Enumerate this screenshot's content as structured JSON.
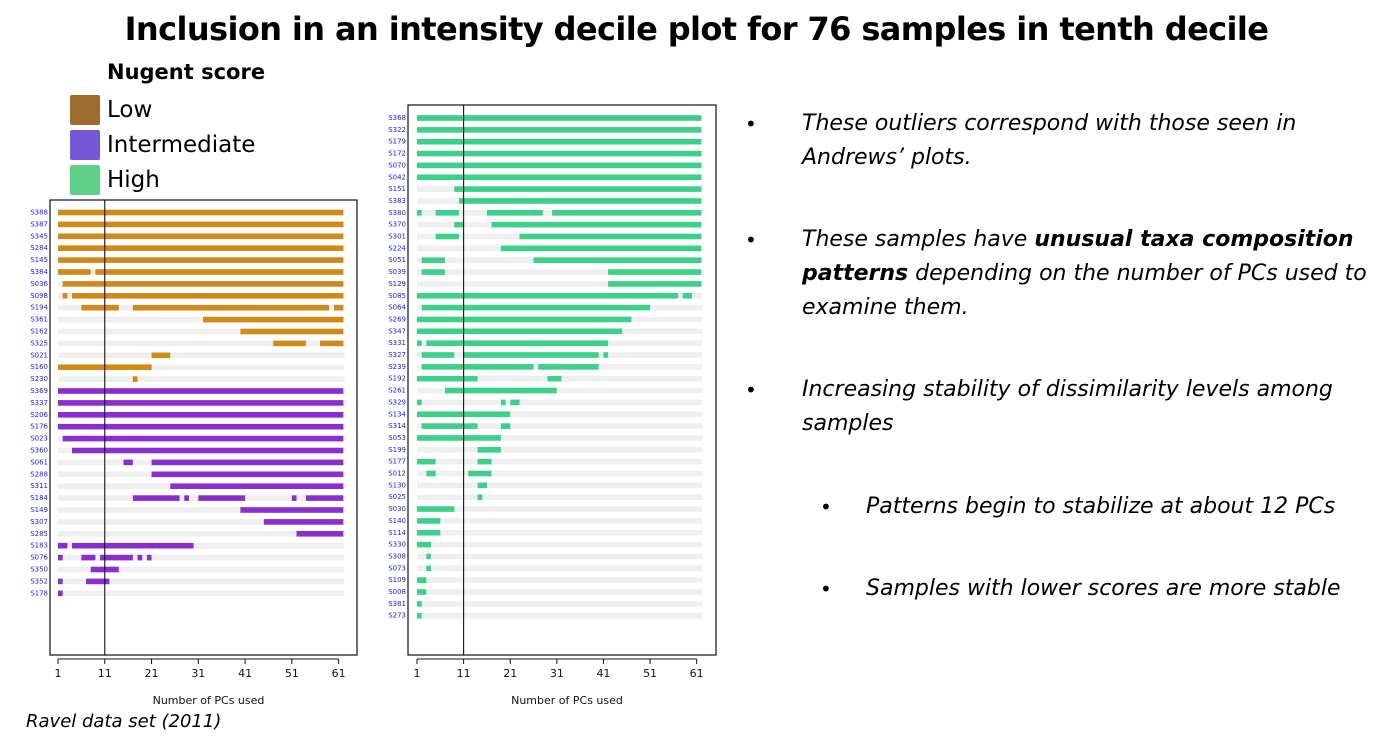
{
  "title": "Inclusion in an intensity decile plot for 76 samples in tenth decile",
  "legend": {
    "title": "Nugent score",
    "items": [
      {
        "label": "Low",
        "color": "#9b6c2e"
      },
      {
        "label": "Intermediate",
        "color": "#7458d6"
      },
      {
        "label": "High",
        "color": "#5fd089"
      }
    ]
  },
  "chart_data": [
    {
      "type": "bar",
      "xlabel": "Number of PCs used",
      "x_ticks": [
        1,
        11,
        21,
        31,
        41,
        51,
        61
      ],
      "xlim": [
        0,
        62
      ],
      "vline_x": 10,
      "track_color": "#efefef",
      "label_color": "#1a1ae6",
      "rows": [
        {
          "label": "S388",
          "color": "#cf8a1a",
          "segments": [
            [
              0,
              61
            ]
          ]
        },
        {
          "label": "S387",
          "color": "#cf8a1a",
          "segments": [
            [
              0,
              61
            ]
          ]
        },
        {
          "label": "S345",
          "color": "#cf8a1a",
          "segments": [
            [
              0,
              61
            ]
          ]
        },
        {
          "label": "S284",
          "color": "#cf8a1a",
          "segments": [
            [
              0,
              61
            ]
          ]
        },
        {
          "label": "S145",
          "color": "#cf8a1a",
          "segments": [
            [
              0,
              61
            ]
          ]
        },
        {
          "label": "S384",
          "color": "#cf8a1a",
          "segments": [
            [
              0,
              7
            ],
            [
              8,
              61
            ]
          ]
        },
        {
          "label": "S036",
          "color": "#cf8a1a",
          "segments": [
            [
              1,
              61
            ]
          ]
        },
        {
          "label": "S098",
          "color": "#cf8a1a",
          "segments": [
            [
              1,
              2
            ],
            [
              3,
              61
            ]
          ]
        },
        {
          "label": "S194",
          "color": "#cf8a1a",
          "segments": [
            [
              5,
              13
            ],
            [
              16,
              58
            ],
            [
              59,
              61
            ]
          ]
        },
        {
          "label": "S361",
          "color": "#cf8a1a",
          "segments": [
            [
              31,
              61
            ]
          ]
        },
        {
          "label": "S162",
          "color": "#cf8a1a",
          "segments": [
            [
              39,
              61
            ]
          ]
        },
        {
          "label": "S325",
          "color": "#cf8a1a",
          "segments": [
            [
              46,
              53
            ],
            [
              56,
              61
            ]
          ]
        },
        {
          "label": "S021",
          "color": "#cf8a1a",
          "segments": [
            [
              20,
              24
            ]
          ]
        },
        {
          "label": "S160",
          "color": "#cf8a1a",
          "segments": [
            [
              0,
              20
            ]
          ]
        },
        {
          "label": "S230",
          "color": "#cf8a1a",
          "segments": [
            [
              16,
              17
            ]
          ]
        },
        {
          "label": "S369",
          "color": "#8a2ed0",
          "segments": [
            [
              0,
              61
            ]
          ]
        },
        {
          "label": "S337",
          "color": "#8a2ed0",
          "segments": [
            [
              0,
              61
            ]
          ]
        },
        {
          "label": "S206",
          "color": "#8a2ed0",
          "segments": [
            [
              0,
              61
            ]
          ]
        },
        {
          "label": "S176",
          "color": "#8a2ed0",
          "segments": [
            [
              0,
              61
            ]
          ]
        },
        {
          "label": "S023",
          "color": "#8a2ed0",
          "segments": [
            [
              1,
              61
            ]
          ]
        },
        {
          "label": "S360",
          "color": "#8a2ed0",
          "segments": [
            [
              3,
              61
            ]
          ]
        },
        {
          "label": "S061",
          "color": "#8a2ed0",
          "segments": [
            [
              14,
              16
            ],
            [
              20,
              61
            ]
          ]
        },
        {
          "label": "S288",
          "color": "#8a2ed0",
          "segments": [
            [
              20,
              61
            ]
          ]
        },
        {
          "label": "S311",
          "color": "#8a2ed0",
          "segments": [
            [
              24,
              61
            ]
          ]
        },
        {
          "label": "S184",
          "color": "#8a2ed0",
          "segments": [
            [
              16,
              26
            ],
            [
              27,
              28
            ],
            [
              30,
              40
            ],
            [
              50,
              51
            ],
            [
              53,
              61
            ]
          ]
        },
        {
          "label": "S149",
          "color": "#8a2ed0",
          "segments": [
            [
              39,
              61
            ]
          ]
        },
        {
          "label": "S307",
          "color": "#8a2ed0",
          "segments": [
            [
              44,
              61
            ]
          ]
        },
        {
          "label": "S285",
          "color": "#8a2ed0",
          "segments": [
            [
              51,
              61
            ]
          ]
        },
        {
          "label": "S183",
          "color": "#8a2ed0",
          "segments": [
            [
              0,
              2
            ],
            [
              3,
              29
            ]
          ]
        },
        {
          "label": "S076",
          "color": "#8a2ed0",
          "segments": [
            [
              0,
              1
            ],
            [
              5,
              8
            ],
            [
              9,
              16
            ],
            [
              17,
              18
            ],
            [
              19,
              20
            ]
          ]
        },
        {
          "label": "S350",
          "color": "#8a2ed0",
          "segments": [
            [
              7,
              13
            ]
          ]
        },
        {
          "label": "S352",
          "color": "#8a2ed0",
          "segments": [
            [
              0,
              1
            ],
            [
              6,
              11
            ]
          ]
        },
        {
          "label": "S178",
          "color": "#8a2ed0",
          "segments": [
            [
              0,
              1
            ]
          ]
        }
      ]
    },
    {
      "type": "bar",
      "xlabel": "Number of PCs used",
      "x_ticks": [
        1,
        11,
        21,
        31,
        41,
        51,
        61
      ],
      "xlim": [
        0,
        62
      ],
      "vline_x": 10,
      "track_color": "#efefef",
      "label_color": "#1a1ae6",
      "rows": [
        {
          "label": "S368",
          "color": "#3dd08a",
          "segments": [
            [
              0,
              61
            ]
          ]
        },
        {
          "label": "S322",
          "color": "#3dd08a",
          "segments": [
            [
              0,
              61
            ]
          ]
        },
        {
          "label": "S179",
          "color": "#3dd08a",
          "segments": [
            [
              0,
              61
            ]
          ]
        },
        {
          "label": "S172",
          "color": "#3dd08a",
          "segments": [
            [
              0,
              61
            ]
          ]
        },
        {
          "label": "S070",
          "color": "#3dd08a",
          "segments": [
            [
              0,
              61
            ]
          ]
        },
        {
          "label": "S042",
          "color": "#3dd08a",
          "segments": [
            [
              0,
              61
            ]
          ]
        },
        {
          "label": "S151",
          "color": "#3dd08a",
          "segments": [
            [
              8,
              61
            ]
          ]
        },
        {
          "label": "S383",
          "color": "#3dd08a",
          "segments": [
            [
              9,
              61
            ]
          ]
        },
        {
          "label": "S380",
          "color": "#3dd08a",
          "segments": [
            [
              0,
              1
            ],
            [
              4,
              9
            ],
            [
              15,
              27
            ],
            [
              29,
              61
            ]
          ]
        },
        {
          "label": "S370",
          "color": "#3dd08a",
          "segments": [
            [
              8,
              10
            ],
            [
              16,
              61
            ]
          ]
        },
        {
          "label": "S301",
          "color": "#3dd08a",
          "segments": [
            [
              4,
              9
            ],
            [
              22,
              61
            ]
          ]
        },
        {
          "label": "S224",
          "color": "#3dd08a",
          "segments": [
            [
              18,
              61
            ]
          ]
        },
        {
          "label": "S051",
          "color": "#3dd08a",
          "segments": [
            [
              1,
              6
            ],
            [
              25,
              61
            ]
          ]
        },
        {
          "label": "S039",
          "color": "#3dd08a",
          "segments": [
            [
              1,
              6
            ],
            [
              41,
              61
            ]
          ]
        },
        {
          "label": "S129",
          "color": "#3dd08a",
          "segments": [
            [
              41,
              61
            ]
          ]
        },
        {
          "label": "S085",
          "color": "#3dd08a",
          "segments": [
            [
              0,
              56
            ],
            [
              57,
              59
            ]
          ]
        },
        {
          "label": "S064",
          "color": "#3dd08a",
          "segments": [
            [
              1,
              50
            ]
          ]
        },
        {
          "label": "S269",
          "color": "#3dd08a",
          "segments": [
            [
              0,
              46
            ]
          ]
        },
        {
          "label": "S347",
          "color": "#3dd08a",
          "segments": [
            [
              0,
              44
            ]
          ]
        },
        {
          "label": "S331",
          "color": "#3dd08a",
          "segments": [
            [
              0,
              1
            ],
            [
              2,
              41
            ]
          ]
        },
        {
          "label": "S327",
          "color": "#3dd08a",
          "segments": [
            [
              1,
              8
            ],
            [
              10,
              39
            ],
            [
              40,
              41
            ]
          ]
        },
        {
          "label": "S239",
          "color": "#3dd08a",
          "segments": [
            [
              1,
              25
            ],
            [
              26,
              39
            ]
          ]
        },
        {
          "label": "S192",
          "color": "#3dd08a",
          "segments": [
            [
              0,
              13
            ],
            [
              28,
              31
            ]
          ]
        },
        {
          "label": "S261",
          "color": "#3dd08a",
          "segments": [
            [
              6,
              30
            ]
          ]
        },
        {
          "label": "S329",
          "color": "#3dd08a",
          "segments": [
            [
              0,
              1
            ],
            [
              18,
              19
            ],
            [
              20,
              22
            ]
          ]
        },
        {
          "label": "S134",
          "color": "#3dd08a",
          "segments": [
            [
              0,
              20
            ]
          ]
        },
        {
          "label": "S314",
          "color": "#3dd08a",
          "segments": [
            [
              1,
              13
            ],
            [
              18,
              20
            ]
          ]
        },
        {
          "label": "S053",
          "color": "#3dd08a",
          "segments": [
            [
              0,
              18
            ]
          ]
        },
        {
          "label": "S199",
          "color": "#3dd08a",
          "segments": [
            [
              13,
              18
            ]
          ]
        },
        {
          "label": "S177",
          "color": "#3dd08a",
          "segments": [
            [
              0,
              4
            ],
            [
              13,
              16
            ]
          ]
        },
        {
          "label": "S012",
          "color": "#3dd08a",
          "segments": [
            [
              2,
              4
            ],
            [
              11,
              16
            ]
          ]
        },
        {
          "label": "S130",
          "color": "#3dd08a",
          "segments": [
            [
              13,
              15
            ]
          ]
        },
        {
          "label": "S025",
          "color": "#3dd08a",
          "segments": [
            [
              13,
              14
            ]
          ]
        },
        {
          "label": "S030",
          "color": "#3dd08a",
          "segments": [
            [
              0,
              8
            ]
          ]
        },
        {
          "label": "S140",
          "color": "#3dd08a",
          "segments": [
            [
              0,
              5
            ]
          ]
        },
        {
          "label": "S114",
          "color": "#3dd08a",
          "segments": [
            [
              0,
              5
            ]
          ]
        },
        {
          "label": "S330",
          "color": "#3dd08a",
          "segments": [
            [
              0,
              3
            ]
          ]
        },
        {
          "label": "S308",
          "color": "#3dd08a",
          "segments": [
            [
              2,
              3
            ]
          ]
        },
        {
          "label": "S073",
          "color": "#3dd08a",
          "segments": [
            [
              2,
              3
            ]
          ]
        },
        {
          "label": "S109",
          "color": "#3dd08a",
          "segments": [
            [
              0,
              2
            ]
          ]
        },
        {
          "label": "S008",
          "color": "#3dd08a",
          "segments": [
            [
              0,
              2
            ]
          ]
        },
        {
          "label": "S381",
          "color": "#3dd08a",
          "segments": [
            [
              0,
              1
            ]
          ]
        },
        {
          "label": "S273",
          "color": "#3dd08a",
          "segments": [
            [
              0,
              1
            ]
          ]
        }
      ]
    }
  ],
  "bullets": [
    {
      "text": "These outliers correspond with those seen in Andrews’ plots.",
      "lines": [
        [
          {
            "t": "These outliers correspond with those seen in",
            "b": false
          }
        ],
        [
          {
            "t": "Andrews’ plots.",
            "b": false
          }
        ]
      ]
    },
    {
      "text": "These samples have unusual taxa composition patterns depending on the number of PCs used to examine them.",
      "lines": [
        [
          {
            "t": "These samples have ",
            "b": false
          },
          {
            "t": "unusual taxa composition",
            "b": true
          }
        ],
        [
          {
            "t": "patterns",
            "b": true
          },
          {
            "t": " depending on the number of PCs used to",
            "b": false
          }
        ],
        [
          {
            "t": "examine them.",
            "b": false
          }
        ]
      ]
    },
    {
      "text": "Increasing stability of dissimilarity levels among samples",
      "lines": [
        [
          {
            "t": "Increasing stability of dissimilarity levels among",
            "b": false
          }
        ],
        [
          {
            "t": "samples",
            "b": false
          }
        ]
      ]
    }
  ],
  "sub_bullets": [
    "Patterns begin to stabilize at about 12 PCs",
    "Samples with lower scores are more stable"
  ],
  "bullet_glyph": "•",
  "footnote": "Ravel data set (2011)"
}
